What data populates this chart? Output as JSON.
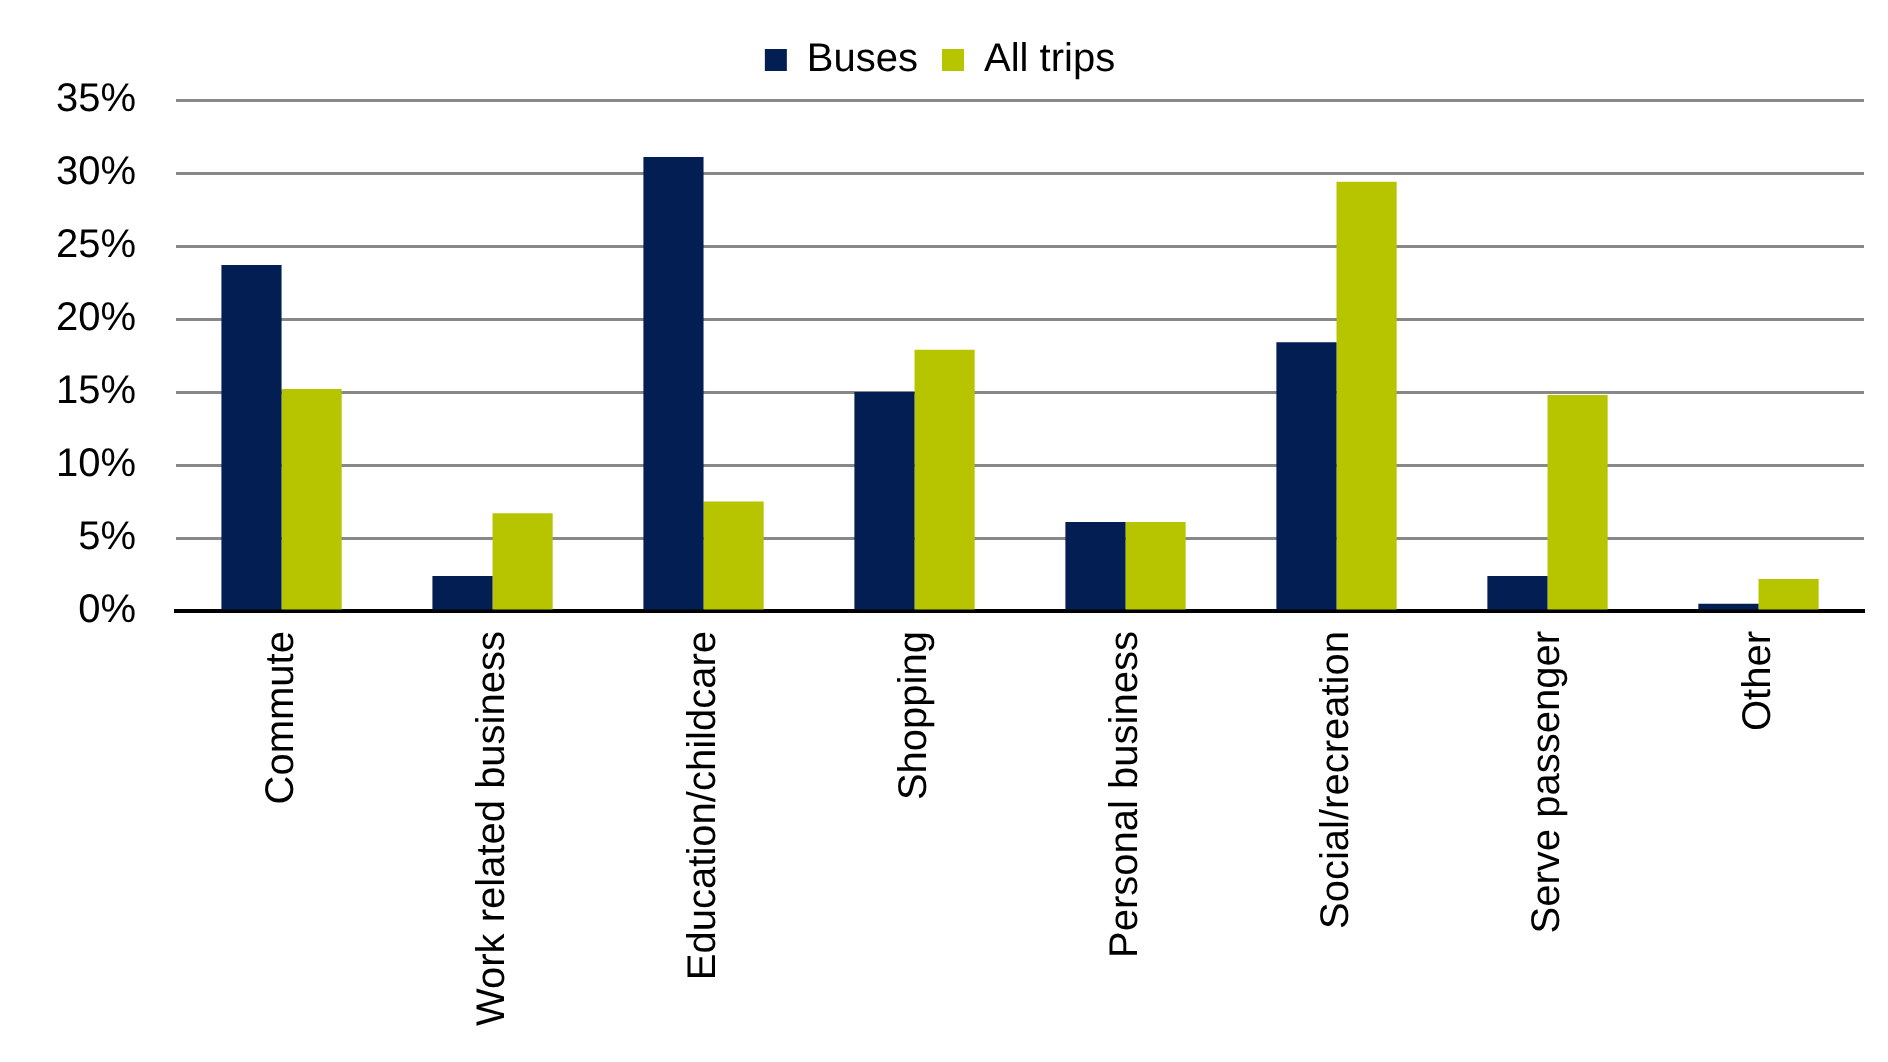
{
  "chart_data": {
    "type": "bar",
    "categories": [
      "Commute",
      "Work related business",
      "Education/childcare",
      "Shopping",
      "Personal business",
      "Social/recreation",
      "Serve passenger",
      "Other"
    ],
    "series": [
      {
        "name": "Buses",
        "color": "#031e52",
        "values": [
          23.7,
          2.4,
          31.1,
          15.0,
          6.1,
          18.4,
          2.4,
          0.5
        ]
      },
      {
        "name": "All trips",
        "color": "#b7c400",
        "values": [
          15.2,
          6.7,
          7.5,
          17.9,
          6.1,
          29.4,
          14.8,
          2.2
        ]
      }
    ],
    "ylim": [
      0,
      35
    ],
    "yticks": [
      {
        "value": 0,
        "label": "0%"
      },
      {
        "value": 5,
        "label": "5%"
      },
      {
        "value": 10,
        "label": "10%"
      },
      {
        "value": 15,
        "label": "15%"
      },
      {
        "value": 20,
        "label": "20%"
      },
      {
        "value": 25,
        "label": "25%"
      },
      {
        "value": 30,
        "label": "30%"
      },
      {
        "value": 35,
        "label": "35%"
      }
    ],
    "grid": "y",
    "legend": "top"
  }
}
